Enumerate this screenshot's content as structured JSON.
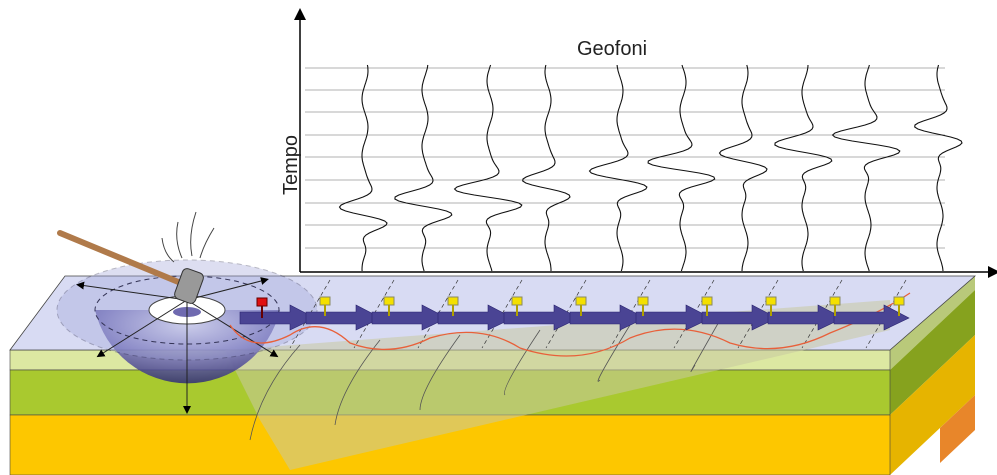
{
  "header": {
    "title": "Geofoni"
  },
  "axis": {
    "y_label": "Tempo"
  }
}
